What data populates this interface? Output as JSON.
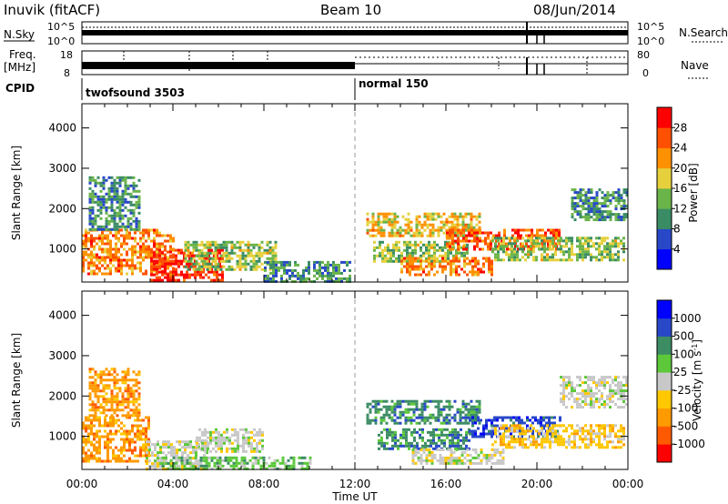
{
  "header": {
    "station": "Inuvik (fitACF)",
    "beam": "Beam 10",
    "date": "08/Jun/2014"
  },
  "strip_panels": {
    "nsky_label": "N.Sky",
    "nsky_ticks": [
      "10^5",
      "10^0"
    ],
    "nsearch_label": "N.Search",
    "nsearch_ticks": [
      "10^5",
      "10^0"
    ],
    "freq_label": "Freq.",
    "freq_unit": "[MHz]",
    "freq_ticks": [
      "18",
      "8"
    ],
    "nave_label": "Nave",
    "nave_ticks": [
      "80",
      "0"
    ],
    "cpid_label": "CPID",
    "cpid_modes": [
      {
        "name": "twofsound 3503",
        "start_hour": 0,
        "end_hour": 12
      },
      {
        "name": "normal 150",
        "start_hour": 12,
        "end_hour": 24
      }
    ]
  },
  "chart_data": [
    {
      "type": "heatmap",
      "title": "",
      "xlabel": "Time UT",
      "ylabel": "Slant Range [km]",
      "x_ticks": [
        "00:00",
        "04:00",
        "08:00",
        "12:00",
        "16:00",
        "20:00",
        "00:00"
      ],
      "xlim_hours": [
        0,
        24
      ],
      "y_ticks": [
        "1000",
        "2000",
        "3000",
        "4000"
      ],
      "ylim": [
        180,
        4600
      ],
      "colorbar": {
        "label": "Power [dB]",
        "ticks": [
          "4",
          "8",
          "12",
          "16",
          "20",
          "24",
          "28"
        ],
        "range": [
          0,
          30
        ],
        "colors": [
          "#0000ff",
          "#2848c8",
          "#3a8c64",
          "#6ab44a",
          "#e6d03c",
          "#ff9000",
          "#ff5000",
          "#ff0000"
        ]
      },
      "echo_regions": [
        {
          "t0": 0.0,
          "t1": 4.0,
          "r0": 350,
          "r1": 1500,
          "value": 22
        },
        {
          "t0": 0.3,
          "t1": 2.5,
          "r0": 1500,
          "r1": 2800,
          "value": 10
        },
        {
          "t0": 3.0,
          "t1": 6.2,
          "r0": 200,
          "r1": 1000,
          "value": 27
        },
        {
          "t0": 4.5,
          "t1": 8.5,
          "r0": 500,
          "r1": 1200,
          "value": 14
        },
        {
          "t0": 8.0,
          "t1": 11.8,
          "r0": 200,
          "r1": 700,
          "value": 10
        },
        {
          "t0": 12.5,
          "t1": 17.5,
          "r0": 1300,
          "r1": 1900,
          "value": 18
        },
        {
          "t0": 12.8,
          "t1": 17.0,
          "r0": 700,
          "r1": 1200,
          "value": 14
        },
        {
          "t0": 14.0,
          "t1": 18.0,
          "r0": 350,
          "r1": 800,
          "value": 22
        },
        {
          "t0": 16.0,
          "t1": 21.0,
          "r0": 1000,
          "r1": 1500,
          "value": 24
        },
        {
          "t0": 18.0,
          "t1": 23.8,
          "r0": 700,
          "r1": 1300,
          "value": 14
        },
        {
          "t0": 21.5,
          "t1": 24.0,
          "r0": 1700,
          "r1": 2500,
          "value": 10
        }
      ]
    },
    {
      "type": "heatmap",
      "title": "",
      "xlabel": "Time UT",
      "ylabel": "Slant Range [km]",
      "x_ticks": [
        "00:00",
        "04:00",
        "08:00",
        "12:00",
        "16:00",
        "20:00",
        "00:00"
      ],
      "xlim_hours": [
        0,
        24
      ],
      "y_ticks": [
        "1000",
        "2000",
        "3000",
        "4000"
      ],
      "ylim": [
        180,
        4600
      ],
      "colorbar": {
        "label": "Velocity [m s",
        "label_sup": "-1",
        "label_end": "]",
        "ticks": [
          "1000",
          "500",
          "100",
          "25",
          "-25",
          "-100",
          "-500",
          "-1000"
        ],
        "colors": [
          "#ff0000",
          "#ff5a00",
          "#ff9a00",
          "#ffc800",
          "#c8c8c8",
          "#5cc83a",
          "#3c8c64",
          "#2848c8",
          "#0000ff"
        ]
      },
      "echo_regions": [
        {
          "t0": 0.0,
          "t1": 3.0,
          "r0": 350,
          "r1": 1500,
          "value": 2
        },
        {
          "t0": 0.3,
          "t1": 2.5,
          "r0": 1500,
          "r1": 2700,
          "value": 2
        },
        {
          "t0": 2.8,
          "t1": 5.5,
          "r0": 200,
          "r1": 900,
          "value": 4
        },
        {
          "t0": 3.5,
          "t1": 10.0,
          "r0": 200,
          "r1": 500,
          "value": 5
        },
        {
          "t0": 5.0,
          "t1": 8.0,
          "r0": 600,
          "r1": 1200,
          "value": 4
        },
        {
          "t0": 12.5,
          "t1": 17.5,
          "r0": 1300,
          "r1": 1900,
          "value": 6
        },
        {
          "t0": 13.0,
          "t1": 17.0,
          "r0": 700,
          "r1": 1200,
          "value": 6
        },
        {
          "t0": 14.5,
          "t1": 18.5,
          "r0": 300,
          "r1": 700,
          "value": 4
        },
        {
          "t0": 17.0,
          "t1": 21.0,
          "r0": 1000,
          "r1": 1500,
          "value": 7
        },
        {
          "t0": 18.0,
          "t1": 23.8,
          "r0": 700,
          "r1": 1300,
          "value": 3
        },
        {
          "t0": 21.0,
          "t1": 24.0,
          "r0": 1700,
          "r1": 2500,
          "value": 4
        }
      ]
    }
  ]
}
